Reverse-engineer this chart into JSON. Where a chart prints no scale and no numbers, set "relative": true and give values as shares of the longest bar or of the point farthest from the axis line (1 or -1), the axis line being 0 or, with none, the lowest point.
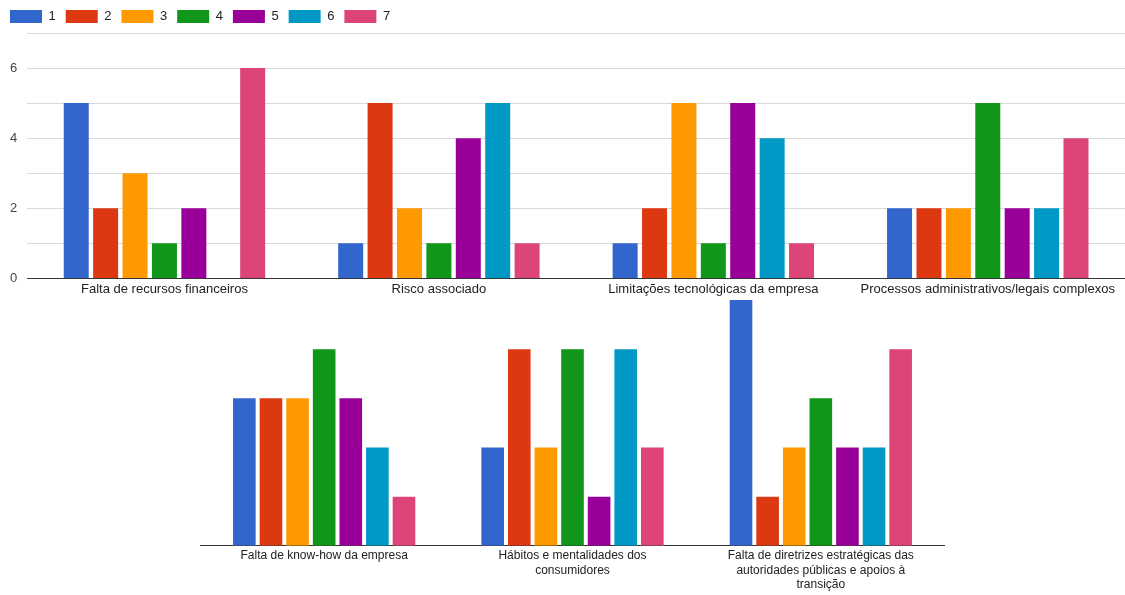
{
  "chart_data": [
    {
      "type": "bar",
      "categories": [
        "Falta de recursos financeiros",
        "Risco associado",
        "Limitações tecnológicas da empresa",
        "Processos administrativos/legais complexos"
      ],
      "series": [
        {
          "name": "1",
          "color": "#3366cc",
          "values": [
            5,
            1,
            1,
            2
          ]
        },
        {
          "name": "2",
          "color": "#dc3912",
          "values": [
            2,
            5,
            2,
            2
          ]
        },
        {
          "name": "3",
          "color": "#ff9900",
          "values": [
            3,
            2,
            5,
            2
          ]
        },
        {
          "name": "4",
          "color": "#109618",
          "values": [
            1,
            1,
            1,
            5
          ]
        },
        {
          "name": "5",
          "color": "#990099",
          "values": [
            2,
            4,
            5,
            2
          ]
        },
        {
          "name": "6",
          "color": "#0099c6",
          "values": [
            0,
            5,
            4,
            2
          ]
        },
        {
          "name": "7",
          "color": "#dd4477",
          "values": [
            6,
            1,
            1,
            4
          ]
        }
      ],
      "ylim": [
        0,
        7
      ],
      "yticks": [
        0,
        {
          "value": 1,
          "label": null
        },
        2,
        {
          "value": 3,
          "label": null
        },
        4,
        {
          "value": 5,
          "label": null
        },
        6,
        {
          "value": 7,
          "label": null
        }
      ],
      "grid": "y",
      "legend": "top left"
    },
    {
      "type": "bar",
      "categories": [
        "Falta de know-how da empresa",
        "Hábitos e mentalidades dos consumidores",
        "Falta de diretrizes estratégicas das autoridades públicas e apoios à transição"
      ],
      "series": [
        {
          "color": "#3366cc",
          "values": [
            0.6,
            0.4,
            1
          ]
        },
        {
          "color": "#dc3912",
          "values": [
            0.6,
            0.8,
            0.2
          ]
        },
        {
          "color": "#ff9900",
          "values": [
            0.6,
            0.4,
            0.4
          ]
        },
        {
          "color": "#109618",
          "values": [
            0.8,
            0.8,
            0.6
          ]
        },
        {
          "color": "#990099",
          "values": [
            0.6,
            0.2,
            0.4
          ]
        },
        {
          "color": "#0099c6",
          "values": [
            0.4,
            0.8,
            0.4
          ]
        },
        {
          "color": "#dd4477",
          "values": [
            0.2,
            0.4,
            0.8
          ]
        }
      ],
      "relative": true
    }
  ]
}
